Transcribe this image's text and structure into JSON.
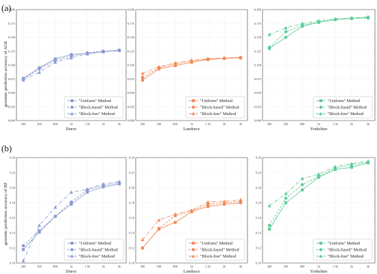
{
  "figure": {
    "panel_letters": [
      "(a)",
      "(b)"
    ],
    "row_ylabels": [
      "genomic prediction accuracy of AGE",
      "genomic prediction accuracy of BF"
    ],
    "legend_items": [
      "\"Uniform\" Method",
      "\"Block-based\" Method",
      "\"Block-free\" Method"
    ],
    "colors": {
      "Duroc": "#8a9bd0",
      "Landrace": "#f08a58",
      "Yorkshire": "#5ccc98"
    }
  },
  "chart_data": [
    {
      "type": "line",
      "breed": "Duroc",
      "trait": "AGE",
      "xlabel": "Duroc",
      "categories": [
        "300",
        "500",
        "800",
        "1k",
        "1.5k",
        "2k",
        "3k"
      ],
      "ylim": [
        0,
        0.2
      ],
      "yticks": [
        "0.000",
        "0.025",
        "0.050",
        "0.075",
        "0.100",
        "0.125",
        "0.150",
        "0.175",
        "0.200"
      ],
      "series": [
        {
          "name": "\"Uniform\" Method",
          "values": [
            0.076,
            0.095,
            0.111,
            0.119,
            0.121,
            0.124,
            0.127
          ]
        },
        {
          "name": "\"Block-based\" Method",
          "values": [
            0.075,
            0.093,
            0.108,
            0.116,
            0.122,
            0.125,
            0.127
          ]
        },
        {
          "name": "\"Block-free\" Method",
          "values": [
            0.073,
            0.087,
            0.105,
            0.113,
            0.12,
            0.124,
            0.126
          ]
        }
      ]
    },
    {
      "type": "line",
      "breed": "Landrace",
      "trait": "AGE",
      "xlabel": "Landrace",
      "categories": [
        "300",
        "500",
        "800",
        "1k",
        "1.5k",
        "2k",
        "3k"
      ],
      "ylim": [
        0,
        0.2
      ],
      "yticks": [
        "0.000",
        "0.025",
        "0.050",
        "0.075",
        "0.100",
        "0.125",
        "0.150",
        "0.175",
        "0.200"
      ],
      "series": [
        {
          "name": "\"Uniform\" Method",
          "values": [
            0.073,
            0.093,
            0.099,
            0.105,
            0.11,
            0.112,
            0.113
          ]
        },
        {
          "name": "\"Block-based\" Method",
          "values": [
            0.078,
            0.095,
            0.102,
            0.107,
            0.111,
            0.112,
            0.113
          ]
        },
        {
          "name": "\"Block-free\" Method",
          "values": [
            0.085,
            0.097,
            0.104,
            0.109,
            0.111,
            0.113,
            0.114
          ]
        }
      ]
    },
    {
      "type": "line",
      "breed": "Yorkshire",
      "trait": "AGE",
      "xlabel": "Yorkshire",
      "categories": [
        "300",
        "500",
        "800",
        "1k",
        "1.5k",
        "2k",
        "3k"
      ],
      "ylim": [
        0,
        0.2
      ],
      "yticks": [
        "0.000",
        "0.025",
        "0.050",
        "0.075",
        "0.100",
        "0.125",
        "0.150",
        "0.175",
        "0.200"
      ],
      "series": [
        {
          "name": "\"Uniform\" Method",
          "values": [
            0.13,
            0.15,
            0.17,
            0.177,
            0.182,
            0.184,
            0.185
          ]
        },
        {
          "name": "\"Block-based\" Method",
          "values": [
            0.132,
            0.16,
            0.172,
            0.178,
            0.182,
            0.184,
            0.186
          ]
        },
        {
          "name": "\"Block-free\" Method",
          "values": [
            0.155,
            0.167,
            0.175,
            0.18,
            0.183,
            0.185,
            0.187
          ]
        }
      ]
    },
    {
      "type": "line",
      "breed": "Duroc",
      "trait": "BF",
      "xlabel": "Duroc",
      "categories": [
        "300",
        "500",
        "800",
        "1k",
        "1.5k",
        "2k",
        "3k"
      ],
      "ylim": [
        0.1,
        0.24
      ],
      "yticks": [
        "0.10",
        "0.12",
        "0.14",
        "0.16",
        "0.18",
        "0.20",
        "0.22",
        "0.24"
      ],
      "series": [
        {
          "name": "\"Uniform\" Method",
          "values": [
            0.118,
            0.141,
            0.162,
            0.178,
            0.194,
            0.201,
            0.205
          ]
        },
        {
          "name": "\"Block-based\" Method",
          "values": [
            0.123,
            0.143,
            0.162,
            0.181,
            0.197,
            0.203,
            0.207
          ]
        },
        {
          "name": "\"Block-free\" Method",
          "values": [
            0.103,
            0.15,
            0.174,
            0.194,
            0.198,
            0.205,
            0.208
          ]
        }
      ]
    },
    {
      "type": "line",
      "breed": "Landrace",
      "trait": "BF",
      "xlabel": "Landrace",
      "categories": [
        "300",
        "500",
        "800",
        "1k",
        "1.5k",
        "2k",
        "3k"
      ],
      "ylim": [
        0.1,
        0.24
      ],
      "yticks": [
        "0.10",
        "0.12",
        "0.14",
        "0.16",
        "0.18",
        "0.20",
        "0.22",
        "0.24"
      ],
      "series": [
        {
          "name": "\"Uniform\" Method",
          "values": [
            0.12,
            0.145,
            0.154,
            0.168,
            0.175,
            0.178,
            0.18
          ]
        },
        {
          "name": "\"Block-based\" Method",
          "values": [
            0.12,
            0.146,
            0.163,
            0.169,
            0.178,
            0.18,
            0.182
          ]
        },
        {
          "name": "\"Block-free\" Method",
          "values": [
            0.131,
            0.157,
            0.165,
            0.17,
            0.181,
            0.182,
            0.184
          ]
        }
      ]
    },
    {
      "type": "line",
      "breed": "Yorkshire",
      "trait": "BF",
      "xlabel": "Yorkshire",
      "categories": [
        "300",
        "500",
        "800",
        "1k",
        "1.5k",
        "2k",
        "3k"
      ],
      "ylim": [
        0.1,
        0.24
      ],
      "yticks": [
        "0.10",
        "0.12",
        "0.14",
        "0.16",
        "0.18",
        "0.20",
        "0.22",
        "0.24"
      ],
      "series": [
        {
          "name": "\"Uniform\" Method",
          "values": [
            0.145,
            0.18,
            0.197,
            0.214,
            0.224,
            0.227,
            0.233
          ]
        },
        {
          "name": "\"Block-based\" Method",
          "values": [
            0.15,
            0.186,
            0.204,
            0.215,
            0.226,
            0.23,
            0.234
          ]
        },
        {
          "name": "\"Block-free\" Method",
          "values": [
            0.176,
            0.192,
            0.212,
            0.218,
            0.228,
            0.232,
            0.235
          ]
        }
      ]
    }
  ]
}
